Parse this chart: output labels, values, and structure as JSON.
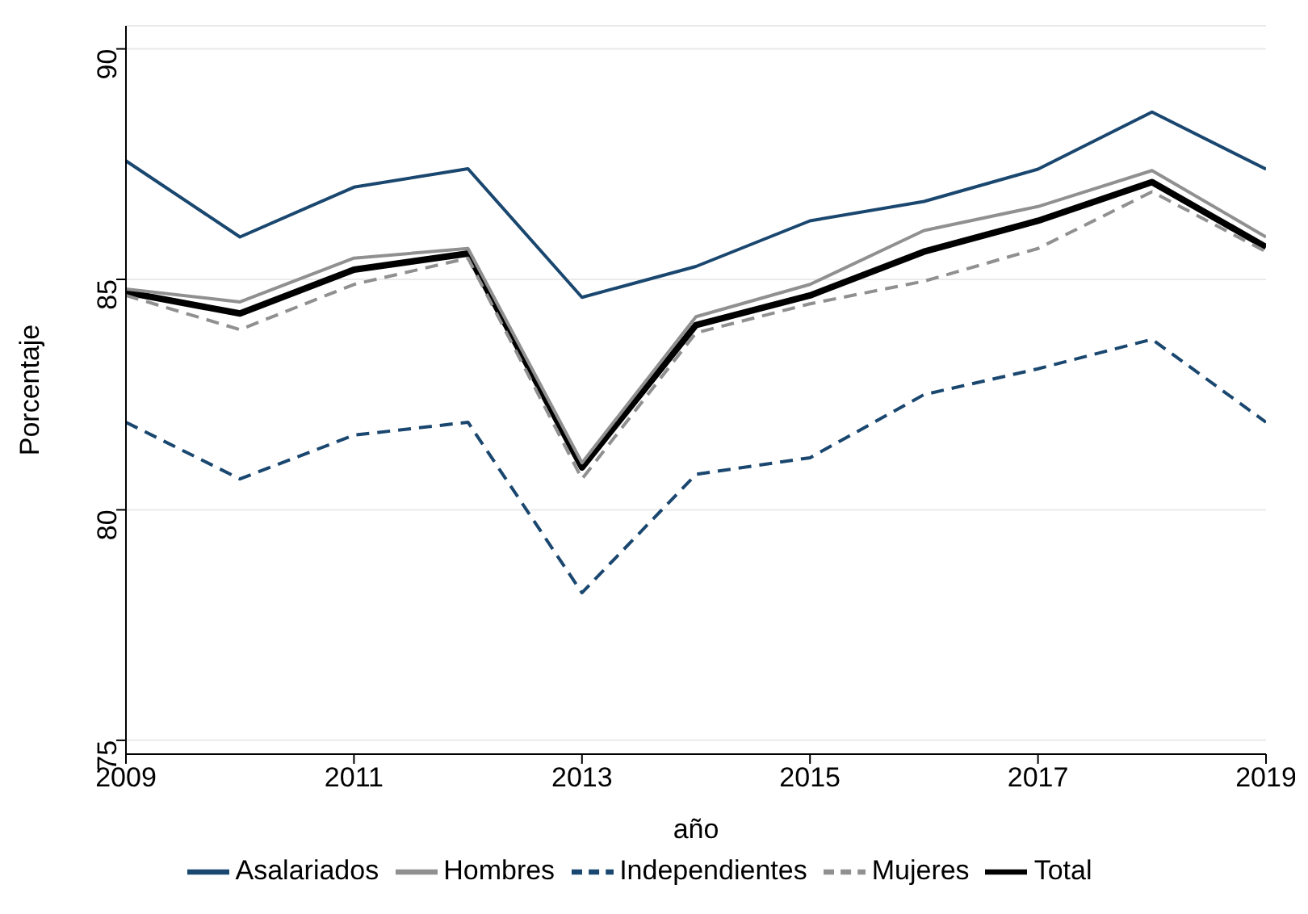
{
  "chart_data": {
    "type": "line",
    "xlabel": "año",
    "ylabel": "Porcentaje",
    "x": [
      2009,
      2010,
      2011,
      2012,
      2013,
      2014,
      2015,
      2016,
      2017,
      2018,
      2019
    ],
    "series": [
      {
        "name": "Total",
        "color": "#000000",
        "line_style": "solid",
        "values": [
          84.72,
          84.26,
          85.21,
          85.56,
          80.92,
          84.01,
          84.65,
          85.6,
          86.27,
          87.11,
          85.7
        ]
      },
      {
        "name": "Asalariados",
        "color": "#1a476f",
        "line_style": "solid",
        "values": [
          87.57,
          85.92,
          87.0,
          87.4,
          84.61,
          85.28,
          86.27,
          86.69,
          87.39,
          88.63,
          87.39
        ]
      },
      {
        "name": "Independientes",
        "color": "#1a476f",
        "line_style": "dashed",
        "values": [
          81.9,
          80.67,
          81.62,
          81.9,
          78.2,
          80.77,
          81.13,
          82.5,
          83.06,
          83.7,
          81.9
        ]
      },
      {
        "name": "Hombres",
        "color": "#909090",
        "line_style": "solid",
        "values": [
          84.79,
          84.51,
          85.46,
          85.67,
          81.02,
          84.19,
          84.89,
          86.06,
          86.58,
          87.36,
          85.92
        ]
      },
      {
        "name": "Mujeres",
        "color": "#909090",
        "line_style": "dashed",
        "values": [
          84.65,
          83.91,
          84.89,
          85.46,
          80.67,
          83.84,
          84.47,
          84.96,
          85.67,
          86.9,
          85.6
        ]
      }
    ],
    "xlim": [
      2009,
      2019
    ],
    "xticks": [
      2009,
      2011,
      2013,
      2015,
      2017,
      2019
    ],
    "ylim": [
      74.7,
      90.5
    ],
    "yticks": [
      75,
      80,
      85,
      90
    ],
    "grid": "y",
    "legend": "bottom",
    "marker": "none"
  }
}
